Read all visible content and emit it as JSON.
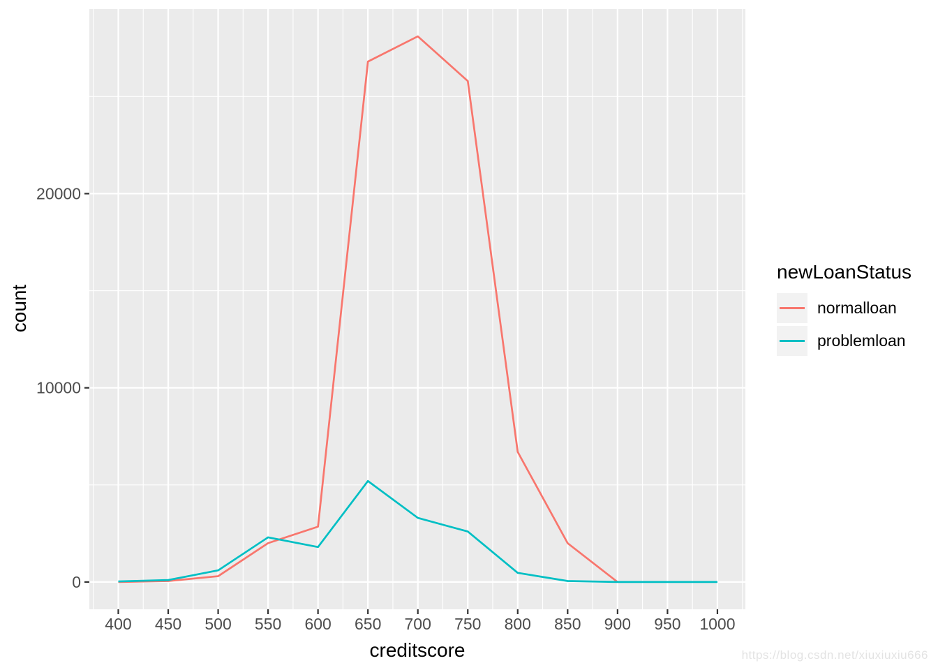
{
  "page": {
    "background": "#FFFFFF",
    "watermark": "https://blog.csdn.net/xiuxiuxiu666"
  },
  "chart_data": {
    "type": "line",
    "title": "",
    "xlabel": "creditscore",
    "ylabel": "count",
    "x_ticks": [
      400,
      450,
      500,
      550,
      600,
      650,
      700,
      750,
      800,
      850,
      900,
      950,
      1000
    ],
    "y_ticks": [
      0,
      10000,
      20000
    ],
    "y_minor_gridlines": [
      5000,
      15000,
      25000
    ],
    "xlim": [
      371,
      1028
    ],
    "ylim": [
      -1405,
      29505
    ],
    "grid": "on",
    "panel_bg": "#EBEBEB",
    "grid_color": "#FFFFFF",
    "tick_mark_color": "#333333",
    "tick_label_color": "#4D4D4D",
    "legend": {
      "title": "newLoanStatus",
      "position": "right",
      "key_bg": "#F2F2F2",
      "entries": [
        {
          "label": "normalloan",
          "color": "#F8766D"
        },
        {
          "label": "problemloan",
          "color": "#00BFC4"
        }
      ]
    },
    "series": [
      {
        "name": "normalloan",
        "color": "#F8766D",
        "x": [
          400,
          450,
          500,
          550,
          600,
          650,
          700,
          750,
          800,
          850,
          900
        ],
        "y": [
          0,
          50,
          300,
          2000,
          2850,
          26800,
          28100,
          25800,
          6700,
          2000,
          0
        ]
      },
      {
        "name": "problemloan",
        "color": "#00BFC4",
        "x": [
          400,
          450,
          500,
          550,
          600,
          650,
          700,
          750,
          800,
          850,
          900,
          950,
          1000
        ],
        "y": [
          30,
          100,
          600,
          2300,
          1800,
          5200,
          3300,
          2600,
          470,
          50,
          0,
          0,
          0
        ]
      }
    ]
  }
}
